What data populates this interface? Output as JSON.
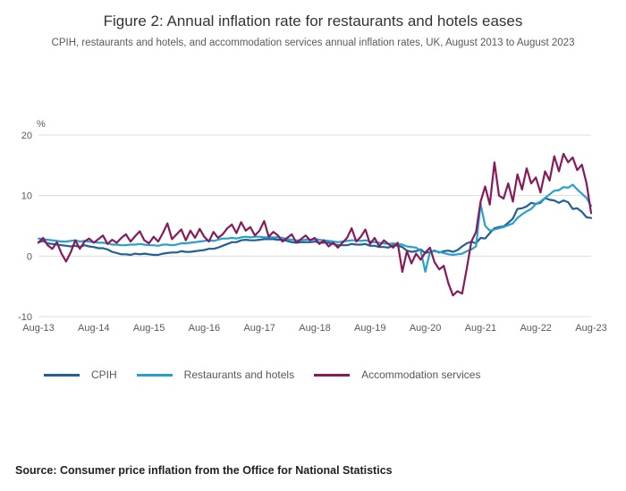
{
  "header": {
    "title": "Figure 2: Annual inflation rate for restaurants and hotels eases",
    "subtitle": "CPIH, restaurants and hotels, and accommodation services annual inflation rates, UK, August 2013 to August 2023"
  },
  "source": "Source: Consumer price inflation from the Office for National Statistics",
  "chart_data": {
    "type": "line",
    "title": "Figure 2: Annual inflation rate for restaurants and hotels eases",
    "unit": "%",
    "xlabel": "",
    "ylabel": "%",
    "ylim": [
      -10,
      20
    ],
    "yticks": [
      20,
      10,
      0,
      -10
    ],
    "grid": "horizontal",
    "legend_position": "bottom",
    "xticks": [
      "Aug-13",
      "Aug-14",
      "Aug-15",
      "Aug-16",
      "Aug-17",
      "Aug-18",
      "Aug-19",
      "Aug-20",
      "Aug-21",
      "Aug-22",
      "Aug-23"
    ],
    "months_per_tick": 12,
    "x_range": "August 2013 to August 2023, monthly",
    "series": [
      {
        "name": "CPIH",
        "color": "#206095",
        "values": [
          2.3,
          2.5,
          2.1,
          2.0,
          1.9,
          1.8,
          1.7,
          1.6,
          1.7,
          1.5,
          1.8,
          1.6,
          1.5,
          1.3,
          1.3,
          1.1,
          0.7,
          0.5,
          0.3,
          0.3,
          0.2,
          0.4,
          0.3,
          0.4,
          0.3,
          0.2,
          0.2,
          0.4,
          0.5,
          0.6,
          0.6,
          0.8,
          0.7,
          0.7,
          0.8,
          0.9,
          1.0,
          1.2,
          1.2,
          1.4,
          1.7,
          2.0,
          2.3,
          2.3,
          2.6,
          2.7,
          2.6,
          2.6,
          2.7,
          2.8,
          2.8,
          2.8,
          2.7,
          2.7,
          2.5,
          2.3,
          2.2,
          2.3,
          2.3,
          2.3,
          2.4,
          2.2,
          2.2,
          2.2,
          2.0,
          1.8,
          1.8,
          1.8,
          2.0,
          1.9,
          1.9,
          2.0,
          1.7,
          1.7,
          1.5,
          1.5,
          1.4,
          1.8,
          1.7,
          1.5,
          0.9,
          0.7,
          0.8,
          1.1,
          0.5,
          0.7,
          0.9,
          0.6,
          0.8,
          0.9,
          0.7,
          1.0,
          1.6,
          2.1,
          2.4,
          2.1,
          3.0,
          2.9,
          3.8,
          4.6,
          4.8,
          4.9,
          5.5,
          6.2,
          7.8,
          7.9,
          8.2,
          8.8,
          8.6,
          8.8,
          9.6,
          9.3,
          9.2,
          8.8,
          9.2,
          8.9,
          7.8,
          7.9,
          7.3,
          6.4,
          6.3
        ]
      },
      {
        "name": "Restaurants and hotels",
        "color": "#27a0cc",
        "values": [
          2.9,
          2.8,
          2.7,
          2.6,
          2.5,
          2.4,
          2.4,
          2.5,
          2.6,
          2.4,
          2.5,
          2.4,
          2.3,
          2.2,
          2.2,
          2.1,
          1.9,
          1.9,
          1.8,
          1.8,
          1.9,
          1.9,
          2.0,
          1.9,
          1.8,
          1.8,
          1.7,
          1.9,
          1.9,
          1.8,
          1.9,
          2.1,
          2.1,
          2.2,
          2.3,
          2.4,
          2.5,
          2.6,
          2.5,
          2.7,
          2.9,
          2.9,
          3.0,
          2.9,
          3.1,
          3.2,
          3.1,
          3.2,
          3.2,
          3.1,
          3.1,
          3.1,
          3.1,
          3.0,
          2.8,
          2.7,
          2.6,
          2.6,
          2.7,
          2.7,
          2.8,
          2.7,
          2.6,
          2.5,
          2.4,
          2.3,
          2.4,
          2.5,
          2.6,
          2.6,
          2.5,
          2.6,
          2.4,
          2.3,
          2.2,
          2.1,
          2.0,
          2.1,
          2.0,
          1.9,
          1.6,
          1.5,
          1.4,
          0.9,
          -2.6,
          0.7,
          0.8,
          0.7,
          0.5,
          0.3,
          0.2,
          0.3,
          0.4,
          0.8,
          1.1,
          1.6,
          8.6,
          5.0,
          4.2,
          4.4,
          4.6,
          4.8,
          5.1,
          5.4,
          6.3,
          6.9,
          7.4,
          7.8,
          8.6,
          9.0,
          9.6,
          10.2,
          10.8,
          10.9,
          11.4,
          11.3,
          11.8,
          11.0,
          10.3,
          9.6,
          8.3
        ]
      },
      {
        "name": "Accommodation services",
        "color": "#871a5b",
        "values": [
          2.2,
          3.0,
          1.8,
          1.2,
          2.3,
          0.4,
          -0.9,
          0.6,
          2.6,
          1.2,
          2.4,
          2.9,
          2.2,
          2.8,
          3.4,
          2.0,
          2.7,
          2.2,
          3.0,
          3.6,
          2.4,
          3.3,
          4.1,
          2.6,
          2.1,
          3.2,
          2.4,
          3.8,
          5.4,
          2.8,
          3.6,
          4.4,
          2.6,
          4.2,
          3.0,
          4.5,
          3.2,
          2.4,
          4.0,
          3.0,
          3.6,
          4.6,
          5.2,
          3.8,
          5.6,
          4.2,
          4.8,
          3.4,
          4.2,
          5.8,
          3.2,
          4.0,
          3.4,
          2.4,
          3.0,
          3.6,
          2.2,
          2.8,
          3.4,
          2.6,
          3.0,
          2.0,
          2.6,
          1.6,
          2.2,
          1.4,
          2.2,
          3.0,
          4.6,
          2.4,
          3.2,
          4.4,
          2.0,
          3.0,
          1.6,
          2.6,
          2.0,
          1.4,
          2.2,
          -2.6,
          0.8,
          -1.2,
          0.4,
          -0.6,
          0.6,
          1.4,
          -1.0,
          -2.2,
          -1.6,
          -4.5,
          -6.5,
          -5.8,
          -6.2,
          -2.0,
          2.4,
          4.0,
          9.0,
          11.5,
          8.5,
          15.5,
          10.0,
          9.5,
          12.0,
          9.0,
          13.5,
          11.0,
          14.5,
          12.0,
          13.0,
          10.5,
          14.0,
          12.5,
          16.5,
          14.0,
          16.9,
          15.5,
          16.3,
          14.2,
          15.1,
          12.0,
          7.1
        ]
      }
    ]
  }
}
